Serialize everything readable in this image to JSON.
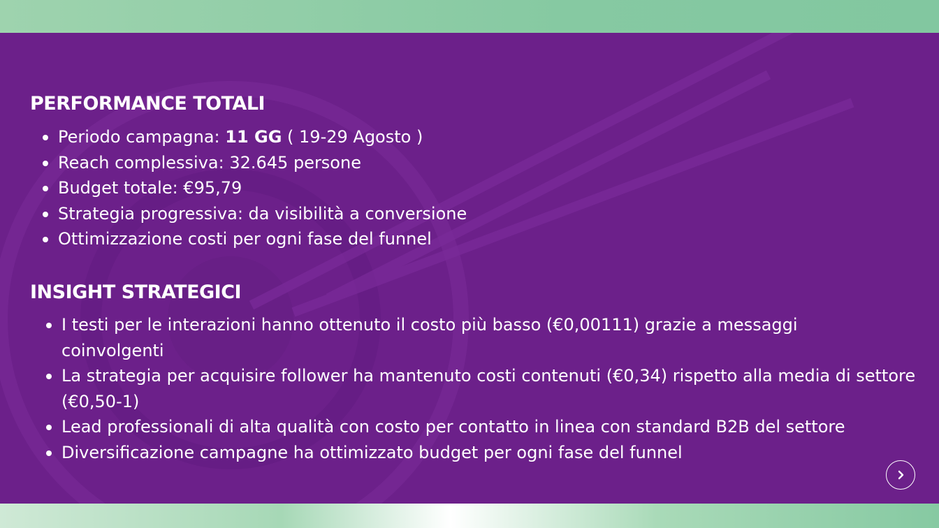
{
  "colors": {
    "panel": "#6c208a",
    "accent_green": "#86c9a2",
    "text": "#ffffff"
  },
  "performance": {
    "title": "PERFORMANCE TOTALI",
    "items": [
      {
        "pre": "Periodo campagna: ",
        "bold": "11 GG",
        "post": " ( 19-29 Agosto )"
      },
      {
        "text": "Reach complessiva: 32.645 persone"
      },
      {
        "text": "Budget totale: €95,79"
      },
      {
        "text": "Strategia progressiva: da visibilità a conversione"
      },
      {
        "text": "Ottimizzazione costi per ogni fase del funnel"
      }
    ]
  },
  "insight": {
    "title": "INSIGHT STRATEGICI",
    "items": [
      "I testi per le interazioni hanno ottenuto il costo più basso (€0,00111) grazie a messaggi coinvolgenti",
      "La strategia per acquisire follower ha mantenuto costi contenuti (€0,34) rispetto alla media di settore (€0,50-1)",
      "Lead professionali di alta qualità con costo per contatto in linea con standard B2B del settore",
      "Diversificazione campagne ha ottimizzato budget per ogni fase del funnel"
    ]
  },
  "nav": {
    "next_icon": "chevron-right-icon"
  }
}
